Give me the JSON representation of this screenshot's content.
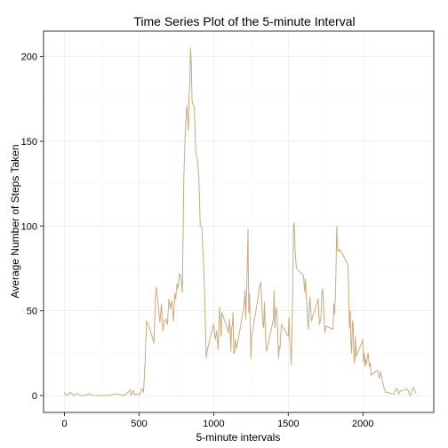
{
  "chart_data": {
    "type": "line",
    "title": "Time Series Plot of the 5-minute Interval",
    "xlabel": "5-minute intervals",
    "ylabel": "Average Number of Steps Taken",
    "xlim": [
      -140,
      2475
    ],
    "ylim": [
      -10,
      215
    ],
    "x_ticks": [
      0,
      500,
      1000,
      1500,
      2000
    ],
    "y_ticks": [
      0,
      50,
      100,
      150,
      200
    ],
    "x_tick_labels": [
      "0",
      "500",
      "1000",
      "1500",
      "2000"
    ],
    "y_tick_labels": [
      "0",
      "50",
      "100",
      "150",
      "200"
    ],
    "grid": true,
    "legend": "none",
    "line_color": "#c9ab7f",
    "series": [
      {
        "x": [
          0,
          10,
          20,
          40,
          60,
          80,
          100,
          120,
          140,
          160,
          200,
          240,
          300,
          340,
          400,
          420,
          440,
          445,
          460,
          470,
          480,
          500,
          510,
          515,
          520,
          525,
          530,
          540,
          550,
          560,
          570,
          580,
          590,
          600,
          610,
          615,
          625,
          630,
          640,
          650,
          660,
          670,
          680,
          690,
          700,
          710,
          720,
          730,
          740,
          745,
          755,
          760,
          770,
          780,
          790,
          800,
          810,
          820,
          825,
          830,
          835,
          840,
          845,
          850,
          855,
          860,
          870,
          880,
          890,
          900,
          910,
          920,
          930,
          940,
          945,
          950,
          955,
          1000,
          1010,
          1020,
          1030,
          1040,
          1050,
          1055,
          1100,
          1105,
          1110,
          1115,
          1120,
          1125,
          1130,
          1135,
          1140,
          1145,
          1150,
          1155,
          1200,
          1205,
          1210,
          1215,
          1220,
          1225,
          1230,
          1235,
          1240,
          1245,
          1250,
          1255,
          1300,
          1305,
          1310,
          1315,
          1320,
          1325,
          1330,
          1335,
          1340,
          1345,
          1350,
          1355,
          1400,
          1405,
          1410,
          1415,
          1420,
          1425,
          1430,
          1435,
          1440,
          1445,
          1450,
          1455,
          1500,
          1505,
          1510,
          1515,
          1520,
          1525,
          1530,
          1535,
          1540,
          1545,
          1550,
          1555,
          1600,
          1605,
          1610,
          1615,
          1620,
          1625,
          1630,
          1635,
          1640,
          1645,
          1650,
          1655,
          1700,
          1705,
          1710,
          1715,
          1720,
          1725,
          1730,
          1735,
          1740,
          1745,
          1750,
          1755,
          1800,
          1805,
          1810,
          1815,
          1820,
          1825,
          1830,
          1835,
          1840,
          1845,
          1850,
          1855,
          1900,
          1905,
          1910,
          1915,
          1920,
          1925,
          1930,
          1935,
          1940,
          1945,
          1950,
          1955,
          2000,
          2005,
          2010,
          2015,
          2020,
          2025,
          2030,
          2035,
          2040,
          2045,
          2050,
          2055,
          2100,
          2110,
          2120,
          2130,
          2140,
          2150,
          2200,
          2210,
          2220,
          2230,
          2240,
          2250,
          2300,
          2310,
          2320,
          2330,
          2340,
          2355
        ],
        "y": [
          1.7,
          0.3,
          0.1,
          2.0,
          0.0,
          1.2,
          0.3,
          0.0,
          0.0,
          1.0,
          0.0,
          0.0,
          0.0,
          1.0,
          0.0,
          1.5,
          3.5,
          0.0,
          3.0,
          0.3,
          1.0,
          0.5,
          2.0,
          3.0,
          4.0,
          3.0,
          2.0,
          19.0,
          44.0,
          42.0,
          40.0,
          37.0,
          34.0,
          31.0,
          58.0,
          64.0,
          56.0,
          52.0,
          43.0,
          54.0,
          38.0,
          44.0,
          45.0,
          42.0,
          57.0,
          51.0,
          56.0,
          44.0,
          60.0,
          57.0,
          66.0,
          63.0,
          72.0,
          70.0,
          61.0,
          129.0,
          157.0,
          171.0,
          165.0,
          156.0,
          178.0,
          183.0,
          205.0,
          196.0,
          174.0,
          172.0,
          170.0,
          143.0,
          140.0,
          130.0,
          100.0,
          100.0,
          82.0,
          59.0,
          39.0,
          22.0,
          26.0,
          42.0,
          33.0,
          38.0,
          27.0,
          52.0,
          35.0,
          49.0,
          37.0,
          45.0,
          38.0,
          26.0,
          40.0,
          41.0,
          49.0,
          25.0,
          25.0,
          33.0,
          30.0,
          28.0,
          51.0,
          55.0,
          62.0,
          45.0,
          60.0,
          75.0,
          98.0,
          49.0,
          60.0,
          39.0,
          22.0,
          35.0,
          59.0,
          64.0,
          65.0,
          67.0,
          60.0,
          50.0,
          42.0,
          40.0,
          55.0,
          41.0,
          30.0,
          26.0,
          45.0,
          62.0,
          40.0,
          48.0,
          52.0,
          47.0,
          34.0,
          22.0,
          29.0,
          28.0,
          37.0,
          42.0,
          35.0,
          46.0,
          31.0,
          29.0,
          18.0,
          40.0,
          62.0,
          100.0,
          102.0,
          87.0,
          80.0,
          75.0,
          71.0,
          67.0,
          61.0,
          69.0,
          60.0,
          52.0,
          44.0,
          39.0,
          51.0,
          58.0,
          52.0,
          44.0,
          57.0,
          48.0,
          42.0,
          44.0,
          47.0,
          61.0,
          63.0,
          56.0,
          44.0,
          37.0,
          40.0,
          41.0,
          39.0,
          54.0,
          48.0,
          57.0,
          75.0,
          100.0,
          87.0,
          85.0,
          86.0,
          86.0,
          85.0,
          85.0,
          77.0,
          60.0,
          40.0,
          50.0,
          31.0,
          25.0,
          44.0,
          41.0,
          22.0,
          19.0,
          35.0,
          23.0,
          33.0,
          20.0,
          25.0,
          17.0,
          21.0,
          19.0,
          23.0,
          25.0,
          20.0,
          17.0,
          19.0,
          12.0,
          15.0,
          10.0,
          14.0,
          9.0,
          5.0,
          2.0,
          1.0,
          1.0,
          4.0,
          4.0,
          0.8,
          2.6,
          3.7,
          1.0,
          0.0,
          3.5,
          4.7,
          1.2
        ]
      }
    ]
  }
}
